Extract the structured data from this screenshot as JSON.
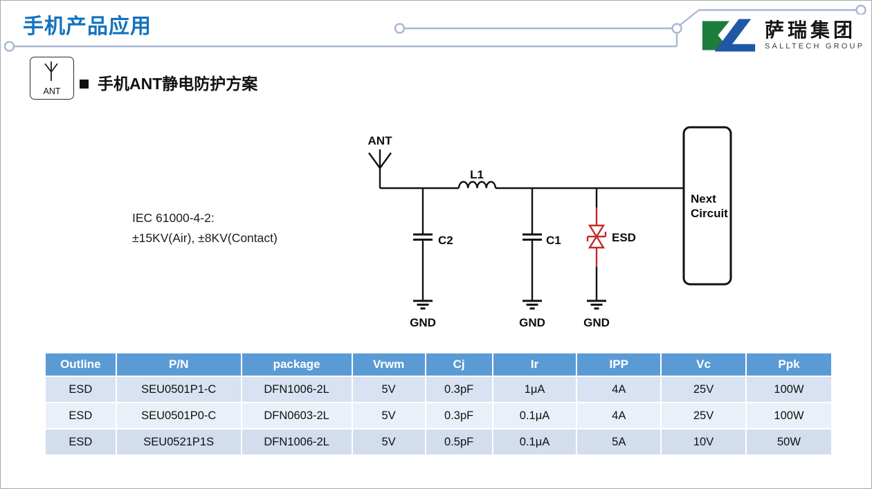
{
  "colors": {
    "title_blue": "#1272be",
    "trace": "#a9b6d6",
    "table_header_bg": "#5b9bd5",
    "table_header_text": "#ffffff",
    "esd_red": "#c42a28",
    "logo_green": "#1c7c3c",
    "logo_blue": "#2057a7"
  },
  "header": {
    "title": "手机产品应用",
    "logo": {
      "name_cn": "萨瑞集团",
      "name_en": "SALLTECH GROUP"
    }
  },
  "section": {
    "icon_label": "ANT",
    "title": "手机ANT静电防护方案"
  },
  "note": {
    "line1": "IEC 61000-4-2:",
    "line2": "±15KV(Air), ±8KV(Contact)"
  },
  "circuit": {
    "ant_label": "ANT",
    "l1_label": "L1",
    "c2_label": "C2",
    "c1_label": "C1",
    "esd_label": "ESD",
    "gnd_labels": [
      "GND",
      "GND",
      "GND"
    ],
    "next_circuit_line1": "Next",
    "next_circuit_line2": "Circuit"
  },
  "table": {
    "headers": [
      "Outline",
      "P/N",
      "package",
      "Vrwm",
      "Cj",
      "Ir",
      "IPP",
      "Vc",
      "Ppk"
    ],
    "rows": [
      [
        "ESD",
        "SEU0501P1-C",
        "DFN1006-2L",
        "5V",
        "0.3pF",
        "1μA",
        "4A",
        "25V",
        "100W"
      ],
      [
        "ESD",
        "SEU0501P0-C",
        "DFN0603-2L",
        "5V",
        "0.3pF",
        "0.1μA",
        "4A",
        "25V",
        "100W"
      ],
      [
        "ESD",
        "SEU0521P1S",
        "DFN1006-2L",
        "5V",
        "0.5pF",
        "0.1μA",
        "5A",
        "10V",
        "50W"
      ]
    ],
    "row_colors": [
      "#d9e2f2",
      "#ebf0f8",
      "#d2ddee"
    ]
  }
}
